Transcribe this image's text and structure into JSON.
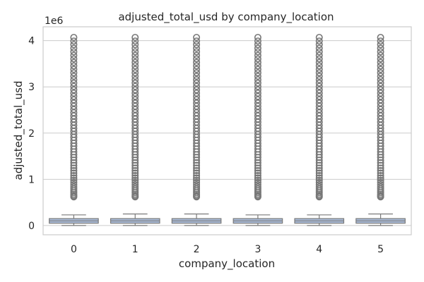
{
  "chart_data": {
    "type": "box",
    "title": "adjusted_total_usd by company_location",
    "xlabel": "company_location",
    "ylabel": "adjusted_total_usd",
    "y_offset_label": "1e6",
    "categories": [
      "0",
      "1",
      "2",
      "3",
      "4",
      "5"
    ],
    "y_ticks": [
      0,
      1,
      2,
      3,
      4
    ],
    "ylim": [
      -0.2,
      4.3
    ],
    "grid": true,
    "box_color": "#a9bbd8",
    "line_color": "#7a7a7a",
    "boxes": [
      {
        "category": "0",
        "whisker_low": 0.0,
        "q1": 0.05,
        "median": 0.1,
        "q3": 0.15,
        "whisker_high": 0.23,
        "flier_min": 0.62,
        "flier_max": 4.07
      },
      {
        "category": "1",
        "whisker_low": 0.0,
        "q1": 0.05,
        "median": 0.1,
        "q3": 0.15,
        "whisker_high": 0.25,
        "flier_min": 0.62,
        "flier_max": 4.07
      },
      {
        "category": "2",
        "whisker_low": 0.0,
        "q1": 0.05,
        "median": 0.1,
        "q3": 0.15,
        "whisker_high": 0.25,
        "flier_min": 0.62,
        "flier_max": 4.07
      },
      {
        "category": "3",
        "whisker_low": 0.0,
        "q1": 0.05,
        "median": 0.1,
        "q3": 0.15,
        "whisker_high": 0.23,
        "flier_min": 0.62,
        "flier_max": 4.07
      },
      {
        "category": "4",
        "whisker_low": 0.0,
        "q1": 0.05,
        "median": 0.1,
        "q3": 0.15,
        "whisker_high": 0.23,
        "flier_min": 0.62,
        "flier_max": 4.07
      },
      {
        "category": "5",
        "whisker_low": 0.0,
        "q1": 0.05,
        "median": 0.1,
        "q3": 0.15,
        "whisker_high": 0.25,
        "flier_min": 0.62,
        "flier_max": 4.07
      }
    ]
  }
}
